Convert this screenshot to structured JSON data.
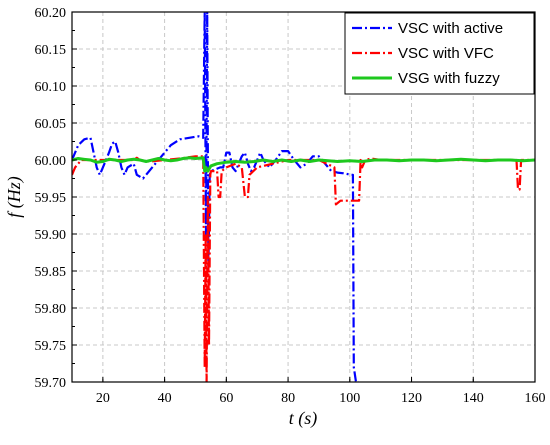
{
  "chart_data": {
    "type": "line",
    "xlabel": "t (s)",
    "ylabel": "f (Hz)",
    "xlim": [
      10,
      160
    ],
    "ylim": [
      59.7,
      60.2
    ],
    "x_ticks": [
      "20",
      "40",
      "60",
      "80",
      "100",
      "120",
      "140",
      "160"
    ],
    "y_ticks": [
      "59.70",
      "59.75",
      "59.80",
      "59.85",
      "59.90",
      "59.95",
      "60.00",
      "60.05",
      "60.10",
      "60.15",
      "60.20"
    ],
    "grid": true,
    "legend_position": "top-right",
    "series": [
      {
        "name": "VSC with active",
        "color": "#0000ff",
        "dash": "dash-dot",
        "points": [
          [
            10,
            60.0
          ],
          [
            11,
            60.01
          ],
          [
            12,
            60.02
          ],
          [
            14,
            60.028
          ],
          [
            16,
            60.03
          ],
          [
            17,
            60.01
          ],
          [
            18,
            59.99
          ],
          [
            19,
            59.98
          ],
          [
            20,
            59.99
          ],
          [
            21,
            60.0
          ],
          [
            22,
            60.01
          ],
          [
            23,
            60.022
          ],
          [
            24,
            60.025
          ],
          [
            25,
            60.01
          ],
          [
            26,
            59.99
          ],
          [
            27,
            59.98
          ],
          [
            28,
            59.99
          ],
          [
            30,
            59.995
          ],
          [
            31,
            59.98
          ],
          [
            33,
            59.975
          ],
          [
            35,
            59.985
          ],
          [
            37,
            59.995
          ],
          [
            39,
            60.005
          ],
          [
            42,
            60.02
          ],
          [
            45,
            60.028
          ],
          [
            48,
            60.03
          ],
          [
            51,
            60.032
          ],
          [
            52.5,
            60.03
          ],
          [
            53,
            60.2
          ],
          [
            53.4,
            59.9
          ],
          [
            53.8,
            60.2
          ],
          [
            54.2,
            59.85
          ],
          [
            54.6,
            59.98
          ],
          [
            55,
            59.985
          ],
          [
            58,
            59.99
          ],
          [
            59,
            59.99
          ],
          [
            60,
            60.01
          ],
          [
            61,
            60.01
          ],
          [
            62,
            59.99
          ],
          [
            63,
            59.985
          ],
          [
            64,
            59.995
          ],
          [
            65,
            60.005
          ],
          [
            66,
            60.01
          ],
          [
            67,
            59.995
          ],
          [
            68,
            59.985
          ],
          [
            69,
            59.99
          ],
          [
            70,
            60.0
          ],
          [
            71,
            60.01
          ],
          [
            72,
            60.0
          ],
          [
            74,
            59.99
          ],
          [
            76,
            60.0
          ],
          [
            78,
            60.012
          ],
          [
            80,
            60.012
          ],
          [
            82,
            60.0
          ],
          [
            84,
            59.99
          ],
          [
            86,
            59.995
          ],
          [
            88,
            60.005
          ],
          [
            90,
            60.005
          ],
          [
            92,
            59.995
          ],
          [
            94,
            59.985
          ],
          [
            96,
            59.983
          ],
          [
            98,
            59.982
          ],
          [
            100.5,
            59.98
          ],
          [
            101,
            59.98
          ],
          [
            101.3,
            59.72
          ],
          [
            102,
            59.7
          ],
          [
            102.5,
            59.7
          ],
          [
            102.8,
            59.7
          ]
        ]
      },
      {
        "name": "VSC with VFC",
        "color": "#ff0000",
        "dash": "dash-dot",
        "points": [
          [
            10,
            59.98
          ],
          [
            11,
            59.99
          ],
          [
            12,
            59.995
          ],
          [
            13,
            60.0
          ],
          [
            20,
            60.0
          ],
          [
            30,
            60.0
          ],
          [
            31,
            60.003
          ],
          [
            32,
            60.0
          ],
          [
            35,
            59.998
          ],
          [
            40,
            60.0
          ],
          [
            45,
            60.002
          ],
          [
            50,
            60.005
          ],
          [
            52.5,
            60.005
          ],
          [
            53,
            59.72
          ],
          [
            53.3,
            59.9
          ],
          [
            53.6,
            59.7
          ],
          [
            54,
            59.95
          ],
          [
            54.4,
            59.75
          ],
          [
            54.8,
            59.98
          ],
          [
            55,
            59.985
          ],
          [
            57,
            59.985
          ],
          [
            57.5,
            59.95
          ],
          [
            58,
            59.95
          ],
          [
            58.5,
            59.985
          ],
          [
            60,
            59.99
          ],
          [
            63,
            59.995
          ],
          [
            65,
            59.99
          ],
          [
            66,
            59.95
          ],
          [
            67,
            59.95
          ],
          [
            67.5,
            59.98
          ],
          [
            70,
            59.99
          ],
          [
            75,
            59.995
          ],
          [
            80,
            60.0
          ],
          [
            90,
            60.0
          ],
          [
            95,
            59.99
          ],
          [
            95.5,
            59.94
          ],
          [
            97,
            59.945
          ],
          [
            100,
            59.945
          ],
          [
            103,
            59.945
          ],
          [
            103.5,
            60.0
          ],
          [
            104,
            59.99
          ],
          [
            105,
            60.0
          ],
          [
            107,
            60.002
          ],
          [
            110,
            60.0
          ],
          [
            120,
            60.0
          ],
          [
            130,
            60.0
          ],
          [
            140,
            60.0
          ],
          [
            150,
            60.0
          ],
          [
            154,
            60.0
          ],
          [
            154.5,
            59.96
          ],
          [
            155,
            59.96
          ],
          [
            155.5,
            60.0
          ],
          [
            160,
            60.0
          ]
        ]
      },
      {
        "name": "VSG with fuzzy",
        "color": "#1ec81e",
        "dash": "solid",
        "points": [
          [
            10,
            60.0
          ],
          [
            12,
            60.002
          ],
          [
            14,
            60.001
          ],
          [
            16,
            60.0
          ],
          [
            18,
            59.997
          ],
          [
            20,
            59.998
          ],
          [
            22,
            60.001
          ],
          [
            24,
            60.0
          ],
          [
            26,
            59.998
          ],
          [
            28,
            60.0
          ],
          [
            30,
            60.001
          ],
          [
            32,
            60.0
          ],
          [
            34,
            59.998
          ],
          [
            36,
            60.0
          ],
          [
            38,
            60.002
          ],
          [
            40,
            60.0
          ],
          [
            42,
            59.999
          ],
          [
            44,
            60.0
          ],
          [
            46,
            60.002
          ],
          [
            48,
            60.003
          ],
          [
            50,
            60.002
          ],
          [
            52.5,
            60.003
          ],
          [
            53,
            59.985
          ],
          [
            53.4,
            59.99
          ],
          [
            54,
            59.985
          ],
          [
            55,
            59.992
          ],
          [
            57,
            59.995
          ],
          [
            60,
            59.997
          ],
          [
            63,
            59.998
          ],
          [
            66,
            59.997
          ],
          [
            69,
            59.998
          ],
          [
            72,
            60.0
          ],
          [
            75,
            59.998
          ],
          [
            78,
            60.0
          ],
          [
            81,
            59.998
          ],
          [
            84,
            60.0
          ],
          [
            87,
            59.998
          ],
          [
            90,
            60.0
          ],
          [
            93,
            59.999
          ],
          [
            96,
            59.998
          ],
          [
            100,
            59.999
          ],
          [
            104,
            59.998
          ],
          [
            108,
            60.0
          ],
          [
            112,
            60.0
          ],
          [
            116,
            59.999
          ],
          [
            120,
            60.0
          ],
          [
            124,
            60.0
          ],
          [
            128,
            59.999
          ],
          [
            132,
            60.0
          ],
          [
            136,
            60.001
          ],
          [
            140,
            60.0
          ],
          [
            144,
            59.999
          ],
          [
            148,
            60.0
          ],
          [
            152,
            60.0
          ],
          [
            156,
            59.999
          ],
          [
            160,
            60.0
          ]
        ]
      }
    ]
  }
}
